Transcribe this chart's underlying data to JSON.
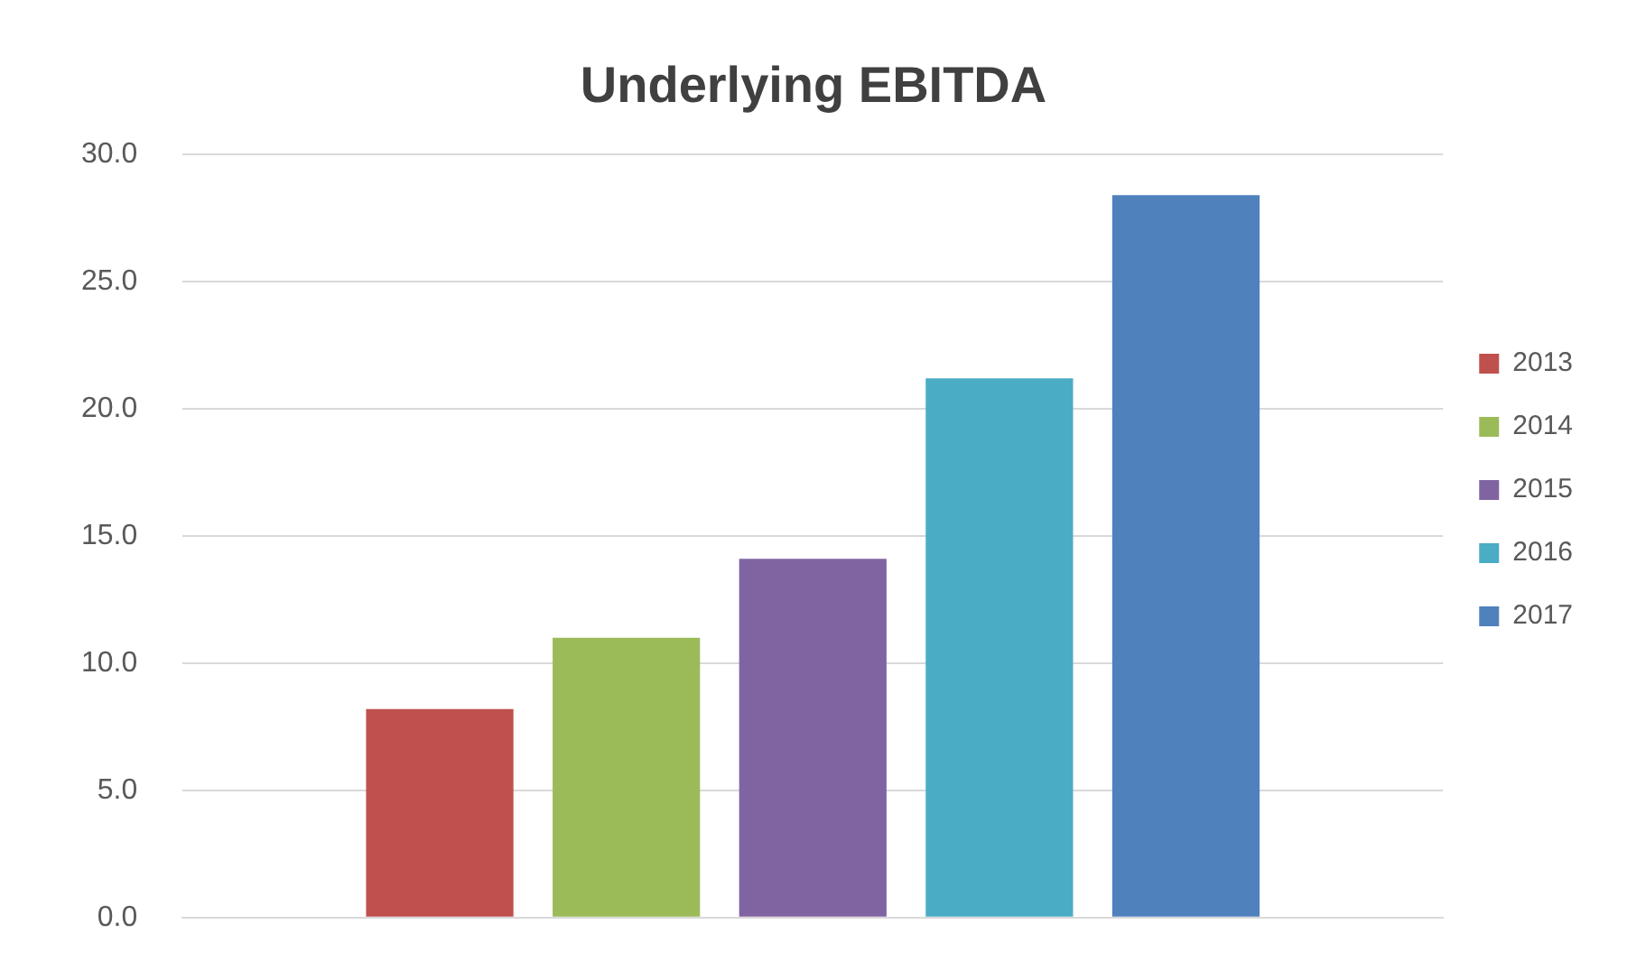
{
  "chart_data": {
    "type": "bar",
    "title": "Underlying EBITDA",
    "categories": [
      null
    ],
    "series": [
      {
        "name": "2013",
        "color": "#c0504d",
        "values": [
          8.2
        ]
      },
      {
        "name": "2014",
        "color": "#9bbb59",
        "values": [
          11.0
        ]
      },
      {
        "name": "2015",
        "color": "#8064a2",
        "values": [
          14.1
        ]
      },
      {
        "name": "2016",
        "color": "#4bacc6",
        "values": [
          21.2
        ]
      },
      {
        "name": "2017",
        "color": "#4f81bd",
        "values": [
          28.4
        ]
      }
    ],
    "ylim": [
      0,
      30
    ],
    "yticks": [
      {
        "value": 0,
        "label": "0.0"
      },
      {
        "value": 5,
        "label": "5.0"
      },
      {
        "value": 10,
        "label": "10.0"
      },
      {
        "value": 15,
        "label": "15.0"
      },
      {
        "value": 20,
        "label": "20.0"
      },
      {
        "value": 25,
        "label": "25.0"
      },
      {
        "value": 30,
        "label": "30.0"
      }
    ],
    "grid": "y",
    "legend": "right"
  }
}
